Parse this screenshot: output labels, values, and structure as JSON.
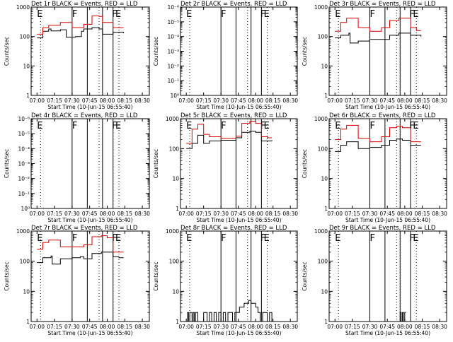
{
  "colors": {
    "events": "#000000",
    "lld": "#d40000",
    "axis": "#000000"
  },
  "time_ticks": [
    "07:00",
    "07:15",
    "07:30",
    "07:45",
    "08:00",
    "08:15",
    "08:30"
  ],
  "start_time_label": "Start Time (10-Jun-15 06:55:40)",
  "ylabel": "Counts/sec",
  "markers": {
    "dotted_lines": [
      "07:03",
      "07:53",
      "08:10"
    ],
    "solid_lines": [
      "07:30",
      "07:43",
      "07:56",
      "08:05"
    ],
    "letters": [
      {
        "text": "E",
        "time": "07:00"
      },
      {
        "text": "F",
        "time": "07:30"
      },
      {
        "text": "F",
        "time": "08:04"
      },
      {
        "text": "E",
        "time": "08:07"
      }
    ]
  },
  "chart_data": [
    {
      "type": "line",
      "title": "Det 1r BLACK = Events, RED = LLD",
      "yscale": "log",
      "ylim": [
        1,
        1000
      ],
      "yticks": [
        "1",
        "10",
        "100",
        "1000"
      ],
      "series": [
        {
          "name": "Events",
          "color": "#000000",
          "x": [
            "07:00",
            "07:05",
            "07:10",
            "07:12",
            "07:20",
            "07:25",
            "07:33",
            "07:38",
            "07:40",
            "07:47",
            "07:53",
            "07:56",
            "08:05",
            "08:10",
            "08:14"
          ],
          "y": [
            90,
            150,
            180,
            155,
            170,
            95,
            100,
            150,
            180,
            200,
            180,
            120,
            140,
            140,
            130
          ]
        },
        {
          "name": "LLD",
          "color": "#d40000",
          "x": [
            "07:00",
            "07:05",
            "07:10",
            "07:20",
            "07:30",
            "07:40",
            "07:47",
            "07:53",
            "07:56",
            "08:05",
            "08:10",
            "08:14"
          ],
          "y": [
            120,
            200,
            240,
            300,
            200,
            260,
            500,
            480,
            300,
            200,
            200,
            200
          ]
        }
      ]
    },
    {
      "type": "line",
      "title": "Det 2r BLACK = Events, RED = LLD",
      "yscale": "log",
      "ylim": [
        1,
        1000000
      ],
      "yticks": [
        "10⁰",
        "10⁻¹",
        "10⁻²",
        "10⁻³",
        "10⁻⁴",
        "10⁻⁵",
        "10⁻⁶"
      ],
      "series": []
    },
    {
      "type": "line",
      "title": "Det 3r BLACK = Events, RED = LLD",
      "yscale": "log",
      "ylim": [
        1,
        1000
      ],
      "yticks": [
        "1",
        "10",
        "100",
        "1000"
      ],
      "series": [
        {
          "name": "Events",
          "color": "#000000",
          "x": [
            "07:00",
            "07:05",
            "07:12",
            "07:13",
            "07:20",
            "07:30",
            "07:40",
            "07:47",
            "07:55",
            "08:05",
            "08:10",
            "08:14"
          ],
          "y": [
            90,
            110,
            130,
            60,
            70,
            80,
            80,
            110,
            130,
            110,
            110,
            100
          ]
        },
        {
          "name": "LLD",
          "color": "#d40000",
          "x": [
            "07:00",
            "07:05",
            "07:10",
            "07:20",
            "07:30",
            "07:40",
            "07:47",
            "07:55",
            "08:05",
            "08:10",
            "08:14"
          ],
          "y": [
            150,
            300,
            420,
            200,
            150,
            200,
            350,
            420,
            200,
            160,
            160
          ]
        }
      ]
    },
    {
      "type": "line",
      "title": "Det 4r BLACK = Events, RED = LLD",
      "yscale": "log",
      "ylim": [
        1,
        1000000
      ],
      "yticks": [
        "10⁰",
        "10⁻¹",
        "10⁻²",
        "10⁻³",
        "10⁻⁴",
        "10⁻⁵",
        "10⁻⁶"
      ],
      "series": []
    },
    {
      "type": "line",
      "title": "Det 5r BLACK = Events, RED = LLD",
      "yscale": "log",
      "ylim": [
        1,
        1000
      ],
      "yticks": [
        "1",
        "10",
        "100",
        "1000"
      ],
      "series": [
        {
          "name": "Events",
          "color": "#000000",
          "x": [
            "07:00",
            "07:05",
            "07:10",
            "07:15",
            "07:20",
            "07:30",
            "07:43",
            "07:48",
            "07:55",
            "08:00",
            "08:05",
            "08:10",
            "08:14"
          ],
          "y": [
            100,
            150,
            280,
            150,
            180,
            190,
            230,
            350,
            380,
            350,
            180,
            180,
            190
          ]
        },
        {
          "name": "LLD",
          "color": "#d40000",
          "x": [
            "07:00",
            "07:05",
            "07:10",
            "07:15",
            "07:20",
            "07:30",
            "07:43",
            "07:48",
            "07:55",
            "08:00",
            "08:05",
            "08:10",
            "08:14"
          ],
          "y": [
            150,
            450,
            650,
            300,
            250,
            220,
            260,
            700,
            820,
            700,
            250,
            230,
            230
          ]
        }
      ]
    },
    {
      "type": "line",
      "title": "Det 6r BLACK = Events, RED = LLD",
      "yscale": "log",
      "ylim": [
        1,
        1000
      ],
      "yticks": [
        "1",
        "10",
        "100",
        "1000"
      ],
      "series": [
        {
          "name": "Events",
          "color": "#000000",
          "x": [
            "07:00",
            "07:05",
            "07:10",
            "07:20",
            "07:30",
            "07:40",
            "07:47",
            "07:53",
            "07:58",
            "08:05",
            "08:10",
            "08:14"
          ],
          "y": [
            80,
            130,
            170,
            100,
            110,
            130,
            190,
            210,
            190,
            130,
            130,
            130
          ]
        },
        {
          "name": "LLD",
          "color": "#d40000",
          "x": [
            "07:00",
            "07:05",
            "07:10",
            "07:20",
            "07:30",
            "07:40",
            "07:47",
            "07:53",
            "07:58",
            "08:05",
            "08:10",
            "08:14"
          ],
          "y": [
            200,
            450,
            600,
            220,
            170,
            250,
            500,
            560,
            500,
            170,
            170,
            170
          ]
        }
      ]
    },
    {
      "type": "line",
      "title": "Det 7r BLACK = Events, RED = LLD",
      "yscale": "log",
      "ylim": [
        1,
        1000
      ],
      "yticks": [
        "1",
        "10",
        "100",
        "1000"
      ],
      "series": [
        {
          "name": "Events",
          "color": "#000000",
          "x": [
            "07:00",
            "07:05",
            "07:12",
            "07:13",
            "07:20",
            "07:30",
            "07:37",
            "07:40",
            "07:47",
            "07:55",
            "08:05",
            "08:10",
            "08:14"
          ],
          "y": [
            90,
            130,
            150,
            80,
            120,
            130,
            140,
            120,
            180,
            200,
            140,
            130,
            130
          ]
        },
        {
          "name": "LLD",
          "color": "#d40000",
          "x": [
            "07:00",
            "07:05",
            "07:10",
            "07:20",
            "07:30",
            "07:40",
            "07:47",
            "07:55",
            "08:00",
            "08:05",
            "08:10",
            "08:14"
          ],
          "y": [
            250,
            420,
            500,
            300,
            300,
            350,
            650,
            700,
            600,
            200,
            200,
            200
          ]
        }
      ]
    },
    {
      "type": "line",
      "title": "Det 8r BLACK = Events, RED = LLD",
      "yscale": "log",
      "ylim": [
        1,
        1000
      ],
      "yticks": [
        "1",
        "10",
        "100",
        "1000"
      ],
      "series": [
        {
          "name": "Events",
          "color": "#000000",
          "x": [
            "07:00",
            "07:01",
            "07:02",
            "07:03",
            "07:04",
            "07:05",
            "07:06",
            "07:07",
            "07:08",
            "07:09",
            "07:10",
            "07:15",
            "07:18",
            "07:20",
            "07:22",
            "07:24",
            "07:26",
            "07:28",
            "07:30",
            "07:32",
            "07:34",
            "07:36",
            "07:38",
            "07:40",
            "07:42",
            "07:44",
            "07:46",
            "07:48",
            "07:50",
            "07:52",
            "07:54",
            "07:56",
            "07:58",
            "08:00",
            "08:02",
            "08:04",
            "08:06",
            "08:08",
            "08:10",
            "08:12",
            "08:14"
          ],
          "y": [
            1,
            2,
            1,
            2,
            2,
            1,
            2,
            1,
            2,
            2,
            1,
            2,
            1,
            2,
            1,
            2,
            1,
            2,
            1,
            2,
            1,
            2,
            2,
            1,
            2,
            2,
            3,
            3,
            4,
            4,
            5,
            4,
            4,
            3,
            2,
            1,
            2,
            2,
            1,
            2,
            1
          ]
        }
      ]
    },
    {
      "type": "line",
      "title": "Det 9r BLACK = Events, RED = LLD",
      "yscale": "log",
      "ylim": [
        1,
        1000
      ],
      "yticks": [
        "1",
        "10",
        "100",
        "1000"
      ],
      "series": [
        {
          "name": "Events",
          "color": "#000000",
          "x": [
            "07:55",
            "07:56",
            "07:57",
            "07:58",
            "07:59",
            "08:00",
            "08:01"
          ],
          "y": [
            1,
            2,
            1,
            2,
            1,
            2,
            2
          ]
        }
      ]
    }
  ]
}
